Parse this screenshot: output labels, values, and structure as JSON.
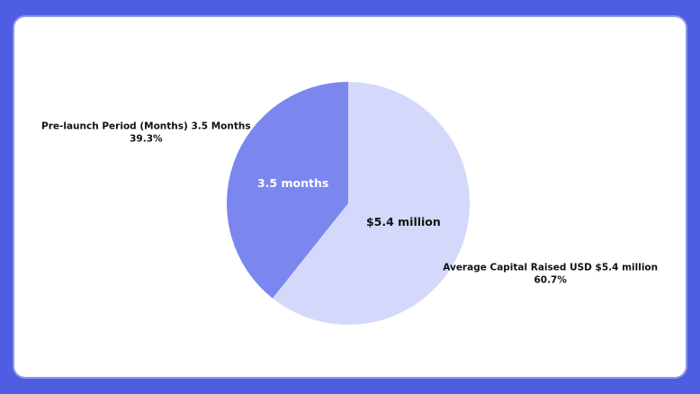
{
  "chart_data": {
    "type": "pie",
    "categories": [
      "Average Capital Raised USD $5.4 million",
      "Pre-launch Period (Months) 3.5 Months"
    ],
    "values": [
      60.7,
      39.3
    ],
    "value_labels": [
      "60.7%",
      "39.3%"
    ],
    "slice_texts": [
      "$5.4 million",
      "3.5 months"
    ],
    "colors": [
      "#d4d9fb",
      "#7b86ee"
    ]
  }
}
